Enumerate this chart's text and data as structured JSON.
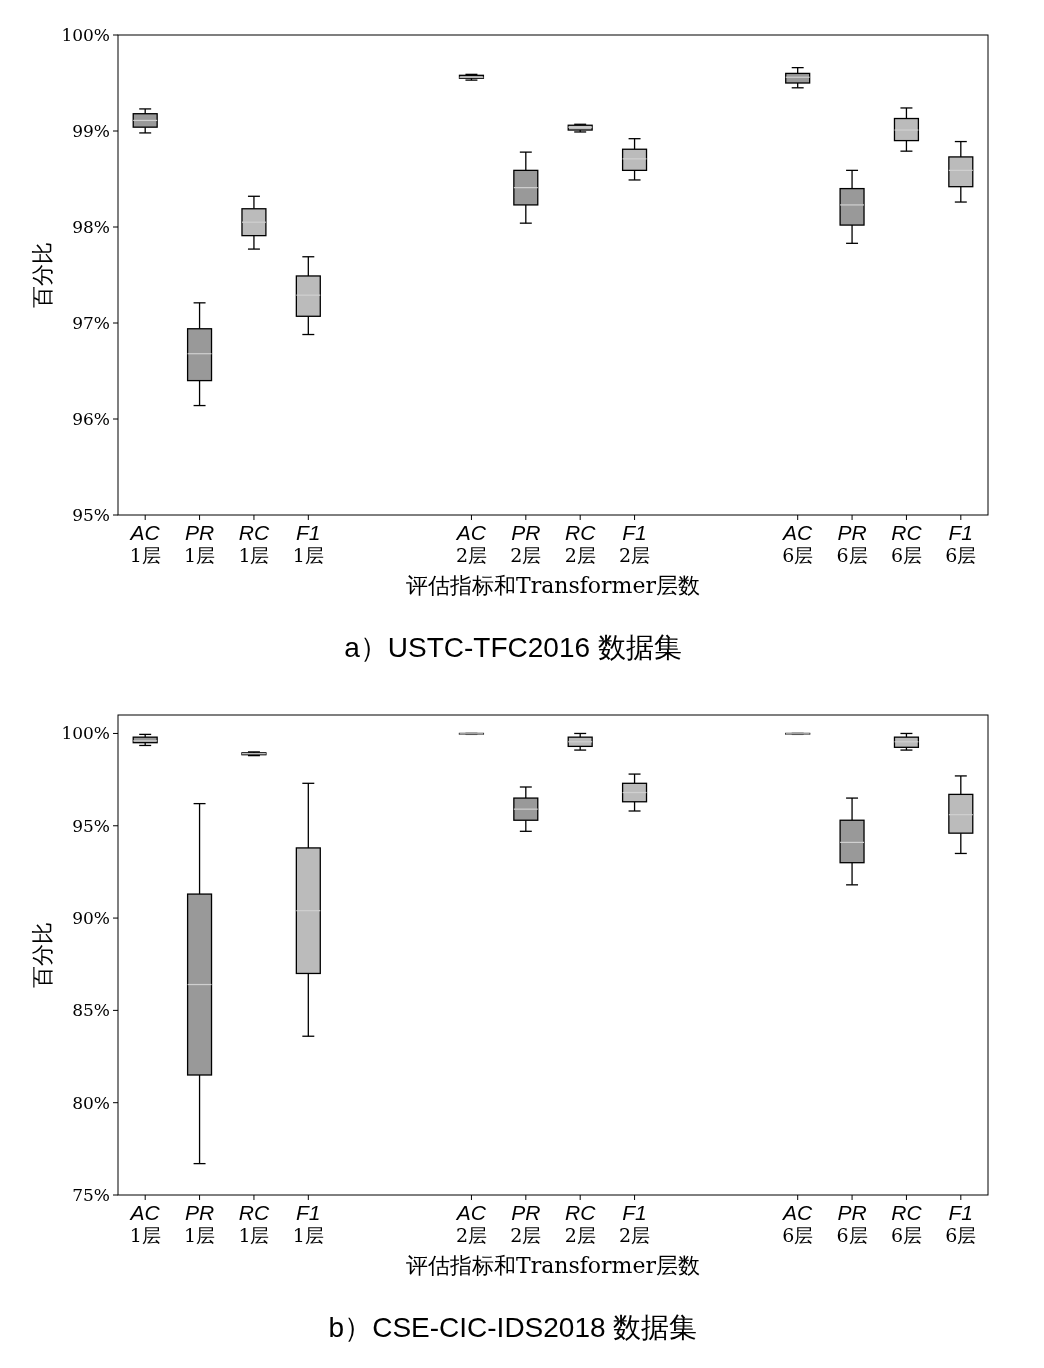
{
  "chart_data": [
    {
      "type": "box",
      "title": "a）USTC-TFC2016 数据集",
      "xlabel": "评估指标和Transformer层数",
      "ylabel": "百分比",
      "categories": [
        "AC\n1层",
        "PR\n1层",
        "RC\n1层",
        "F1\n1层",
        null,
        null,
        "AC\n2层",
        "PR\n2层",
        "RC\n2层",
        "F1\n2层",
        null,
        null,
        "AC\n6层",
        "PR\n6层",
        "RC\n6层",
        "F1\n6层"
      ],
      "colors": [
        "#999999",
        "#999999",
        "#bbbbbb",
        "#bbbbbb",
        null,
        null,
        "#999999",
        "#999999",
        "#bbbbbb",
        "#bbbbbb",
        null,
        null,
        "#999999",
        "#999999",
        "#bbbbbb",
        "#bbbbbb"
      ],
      "boxes": [
        {
          "low": 98.98,
          "q1": 99.04,
          "median": 99.11,
          "q3": 99.18,
          "high": 99.23
        },
        {
          "low": 96.14,
          "q1": 96.4,
          "median": 96.68,
          "q3": 96.94,
          "high": 97.21
        },
        {
          "low": 97.77,
          "q1": 97.91,
          "median": 98.05,
          "q3": 98.19,
          "high": 98.32
        },
        {
          "low": 96.88,
          "q1": 97.07,
          "median": 97.29,
          "q3": 97.49,
          "high": 97.69
        },
        null,
        null,
        {
          "low": 99.53,
          "q1": 99.55,
          "median": 99.56,
          "q3": 99.58,
          "high": 99.59
        },
        {
          "low": 98.04,
          "q1": 98.23,
          "median": 98.41,
          "q3": 98.59,
          "high": 98.78
        },
        {
          "low": 98.99,
          "q1": 99.01,
          "median": 99.04,
          "q3": 99.06,
          "high": 99.07
        },
        {
          "low": 98.49,
          "q1": 98.59,
          "median": 98.71,
          "q3": 98.81,
          "high": 98.92
        },
        null,
        null,
        {
          "low": 99.45,
          "q1": 99.5,
          "median": 99.56,
          "q3": 99.6,
          "high": 99.66
        },
        {
          "low": 97.83,
          "q1": 98.02,
          "median": 98.23,
          "q3": 98.4,
          "high": 98.59
        },
        {
          "low": 98.79,
          "q1": 98.9,
          "median": 99.01,
          "q3": 99.13,
          "high": 99.24
        },
        {
          "low": 98.26,
          "q1": 98.42,
          "median": 98.59,
          "q3": 98.73,
          "high": 98.89
        }
      ],
      "ylim": [
        95,
        100
      ],
      "yticks": [
        {
          "value": 95,
          "label": "95%"
        },
        {
          "value": 96,
          "label": "96%"
        },
        {
          "value": 97,
          "label": "97%"
        },
        {
          "value": 98,
          "label": "98%"
        },
        {
          "value": 99,
          "label": "99%"
        },
        {
          "value": 100,
          "label": "100%"
        }
      ]
    },
    {
      "type": "box",
      "title": "b）CSE-CIC-IDS2018 数据集",
      "xlabel": "评估指标和Transformer层数",
      "ylabel": "百分比",
      "categories": [
        "AC\n1层",
        "PR\n1层",
        "RC\n1层",
        "F1\n1层",
        null,
        null,
        "AC\n2层",
        "PR\n2层",
        "RC\n2层",
        "F1\n2层",
        null,
        null,
        "AC\n6层",
        "PR\n6层",
        "RC\n6层",
        "F1\n6层"
      ],
      "colors": [
        "#999999",
        "#999999",
        "#bbbbbb",
        "#bbbbbb",
        null,
        null,
        "#999999",
        "#999999",
        "#bbbbbb",
        "#bbbbbb",
        null,
        null,
        "#999999",
        "#999999",
        "#bbbbbb",
        "#bbbbbb"
      ],
      "boxes": [
        {
          "low": 99.35,
          "q1": 99.5,
          "median": 99.6,
          "q3": 99.8,
          "high": 99.95
        },
        {
          "low": 76.7,
          "q1": 81.5,
          "median": 86.4,
          "q3": 91.3,
          "high": 96.2
        },
        {
          "low": 98.8,
          "q1": 98.85,
          "median": 98.9,
          "q3": 98.95,
          "high": 99.0
        },
        {
          "low": 83.6,
          "q1": 87.0,
          "median": 90.4,
          "q3": 93.8,
          "high": 97.3
        },
        null,
        null,
        {
          "low": 99.95,
          "q1": 99.97,
          "median": 99.98,
          "q3": 100,
          "high": 100
        },
        {
          "low": 94.7,
          "q1": 95.3,
          "median": 95.9,
          "q3": 96.5,
          "high": 97.1
        },
        {
          "low": 99.1,
          "q1": 99.3,
          "median": 99.55,
          "q3": 99.8,
          "high": 100
        },
        {
          "low": 95.8,
          "q1": 96.3,
          "median": 96.8,
          "q3": 97.3,
          "high": 97.8
        },
        null,
        null,
        {
          "low": 99.95,
          "q1": 99.97,
          "median": 99.98,
          "q3": 100,
          "high": 100
        },
        {
          "low": 91.8,
          "q1": 93.0,
          "median": 94.1,
          "q3": 95.3,
          "high": 96.5
        },
        {
          "low": 99.1,
          "q1": 99.25,
          "median": 99.55,
          "q3": 99.8,
          "high": 100
        },
        {
          "low": 93.5,
          "q1": 94.6,
          "median": 95.6,
          "q3": 96.7,
          "high": 97.7
        }
      ],
      "ylim": [
        75,
        101
      ],
      "yticks": [
        {
          "value": 75,
          "label": "75%"
        },
        {
          "value": 80,
          "label": "80%"
        },
        {
          "value": 85,
          "label": "85%"
        },
        {
          "value": 90,
          "label": "90%"
        },
        {
          "value": 95,
          "label": "95%"
        },
        {
          "value": 100,
          "label": "100%"
        }
      ]
    }
  ]
}
